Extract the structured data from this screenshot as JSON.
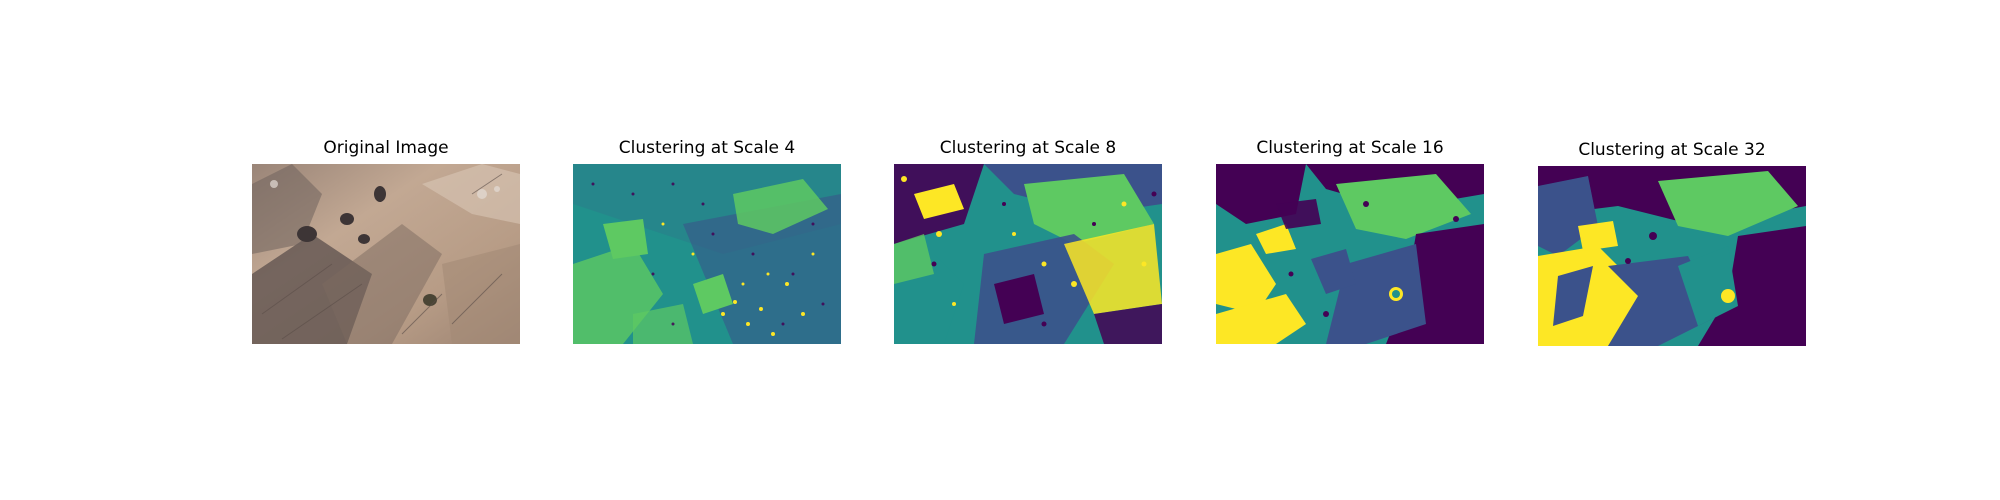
{
  "figure": {
    "panels": [
      {
        "title": "Original Image",
        "kind": "photo",
        "clusters": null
      },
      {
        "title": "Clustering at Scale 4",
        "kind": "cluster-map",
        "clusters": 5
      },
      {
        "title": "Clustering at Scale 8",
        "kind": "cluster-map",
        "clusters": 5
      },
      {
        "title": "Clustering at Scale 16",
        "kind": "cluster-map",
        "clusters": 5
      },
      {
        "title": "Clustering at Scale 32",
        "kind": "cluster-map",
        "clusters": 5
      }
    ],
    "colormap": [
      "#440154",
      "#3b528b",
      "#21918c",
      "#5ec962",
      "#fde725"
    ],
    "photo_palette": [
      "#b9a08c",
      "#8f7a6c",
      "#5d5252",
      "#d8c4b4",
      "#3e3a3c"
    ]
  }
}
